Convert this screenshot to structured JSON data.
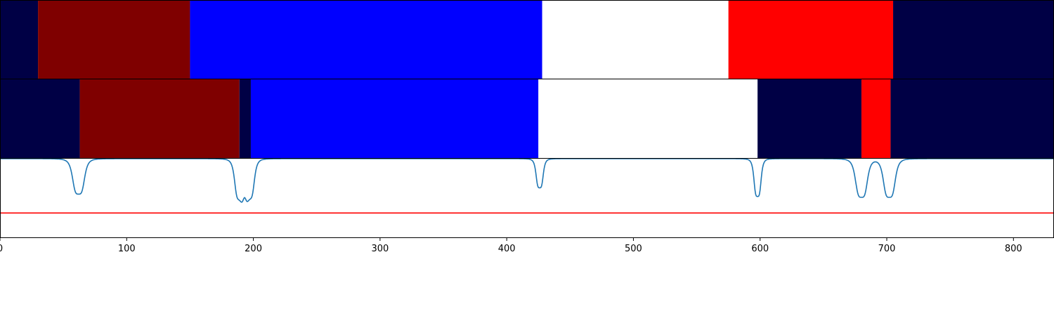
{
  "chart_data": [
    {
      "type": "bar",
      "orientation": "horizontal-segments",
      "title": "",
      "xlabel": "",
      "ylabel": "",
      "xlim": [
        0,
        832
      ],
      "grid": false,
      "segments": [
        {
          "start": 0,
          "end": 30,
          "color": "#000045"
        },
        {
          "start": 30,
          "end": 150,
          "color": "#7f0000"
        },
        {
          "start": 150,
          "end": 428,
          "color": "#0000ff"
        },
        {
          "start": 428,
          "end": 575,
          "color": "#ffffff"
        },
        {
          "start": 575,
          "end": 705,
          "color": "#ff0000"
        },
        {
          "start": 705,
          "end": 832,
          "color": "#000045"
        }
      ]
    },
    {
      "type": "bar",
      "orientation": "horizontal-segments",
      "title": "",
      "xlabel": "",
      "ylabel": "",
      "xlim": [
        0,
        832
      ],
      "grid": false,
      "segments": [
        {
          "start": 0,
          "end": 63,
          "color": "#000045"
        },
        {
          "start": 63,
          "end": 189,
          "color": "#7f0000"
        },
        {
          "start": 189,
          "end": 198,
          "color": "#000045"
        },
        {
          "start": 198,
          "end": 425,
          "color": "#0000ff"
        },
        {
          "start": 425,
          "end": 598,
          "color": "#ffffff"
        },
        {
          "start": 598,
          "end": 680,
          "color": "#000045"
        },
        {
          "start": 680,
          "end": 703,
          "color": "#ff0000"
        },
        {
          "start": 703,
          "end": 832,
          "color": "#000045"
        }
      ]
    },
    {
      "type": "line",
      "title": "",
      "xlabel": "",
      "ylabel": "",
      "xlim": [
        0,
        832
      ],
      "ylim": [
        0,
        1
      ],
      "grid": false,
      "x_ticks": [
        "0",
        "100",
        "200",
        "300",
        "400",
        "500",
        "600",
        "700",
        "800"
      ],
      "x_tick_values": [
        0,
        100,
        200,
        300,
        400,
        500,
        600,
        700,
        800
      ],
      "series": [
        {
          "color": "#1f77b4",
          "baseline": 1.0,
          "dips": [
            {
              "center": 62,
              "depth": 0.45,
              "width": 5
            },
            {
              "center": 189,
              "depth": 0.5,
              "width": 4
            },
            {
              "center": 197,
              "depth": 0.49,
              "width": 4
            },
            {
              "center": 426,
              "depth": 0.37,
              "width": 3
            },
            {
              "center": 598,
              "depth": 0.48,
              "width": 3
            },
            {
              "center": 680,
              "depth": 0.49,
              "width": 5
            },
            {
              "center": 702,
              "depth": 0.49,
              "width": 5
            }
          ]
        },
        {
          "color": "#ff0000",
          "constant": 0.31
        }
      ]
    }
  ]
}
